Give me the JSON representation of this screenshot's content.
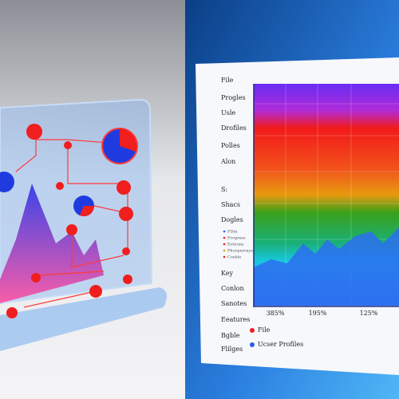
{
  "sidebar": {
    "items": [
      "File",
      "Progles",
      "Usle",
      "Drofiles",
      "Polles",
      "Alon",
      "S:",
      "Shacs",
      "Dogles"
    ],
    "small_legend": [
      "FDin",
      "Frogress",
      "Eoticms",
      "Phooperrays",
      "Cosble"
    ],
    "lower_items": [
      "Key",
      "Conlon",
      "Sanotes",
      "Eeatures",
      "Bgble",
      "Flilges"
    ]
  },
  "chart": {
    "axis_labels": [
      "385%",
      "195%",
      "125%"
    ],
    "legend": [
      "File",
      "Ucser Profiles"
    ]
  }
}
